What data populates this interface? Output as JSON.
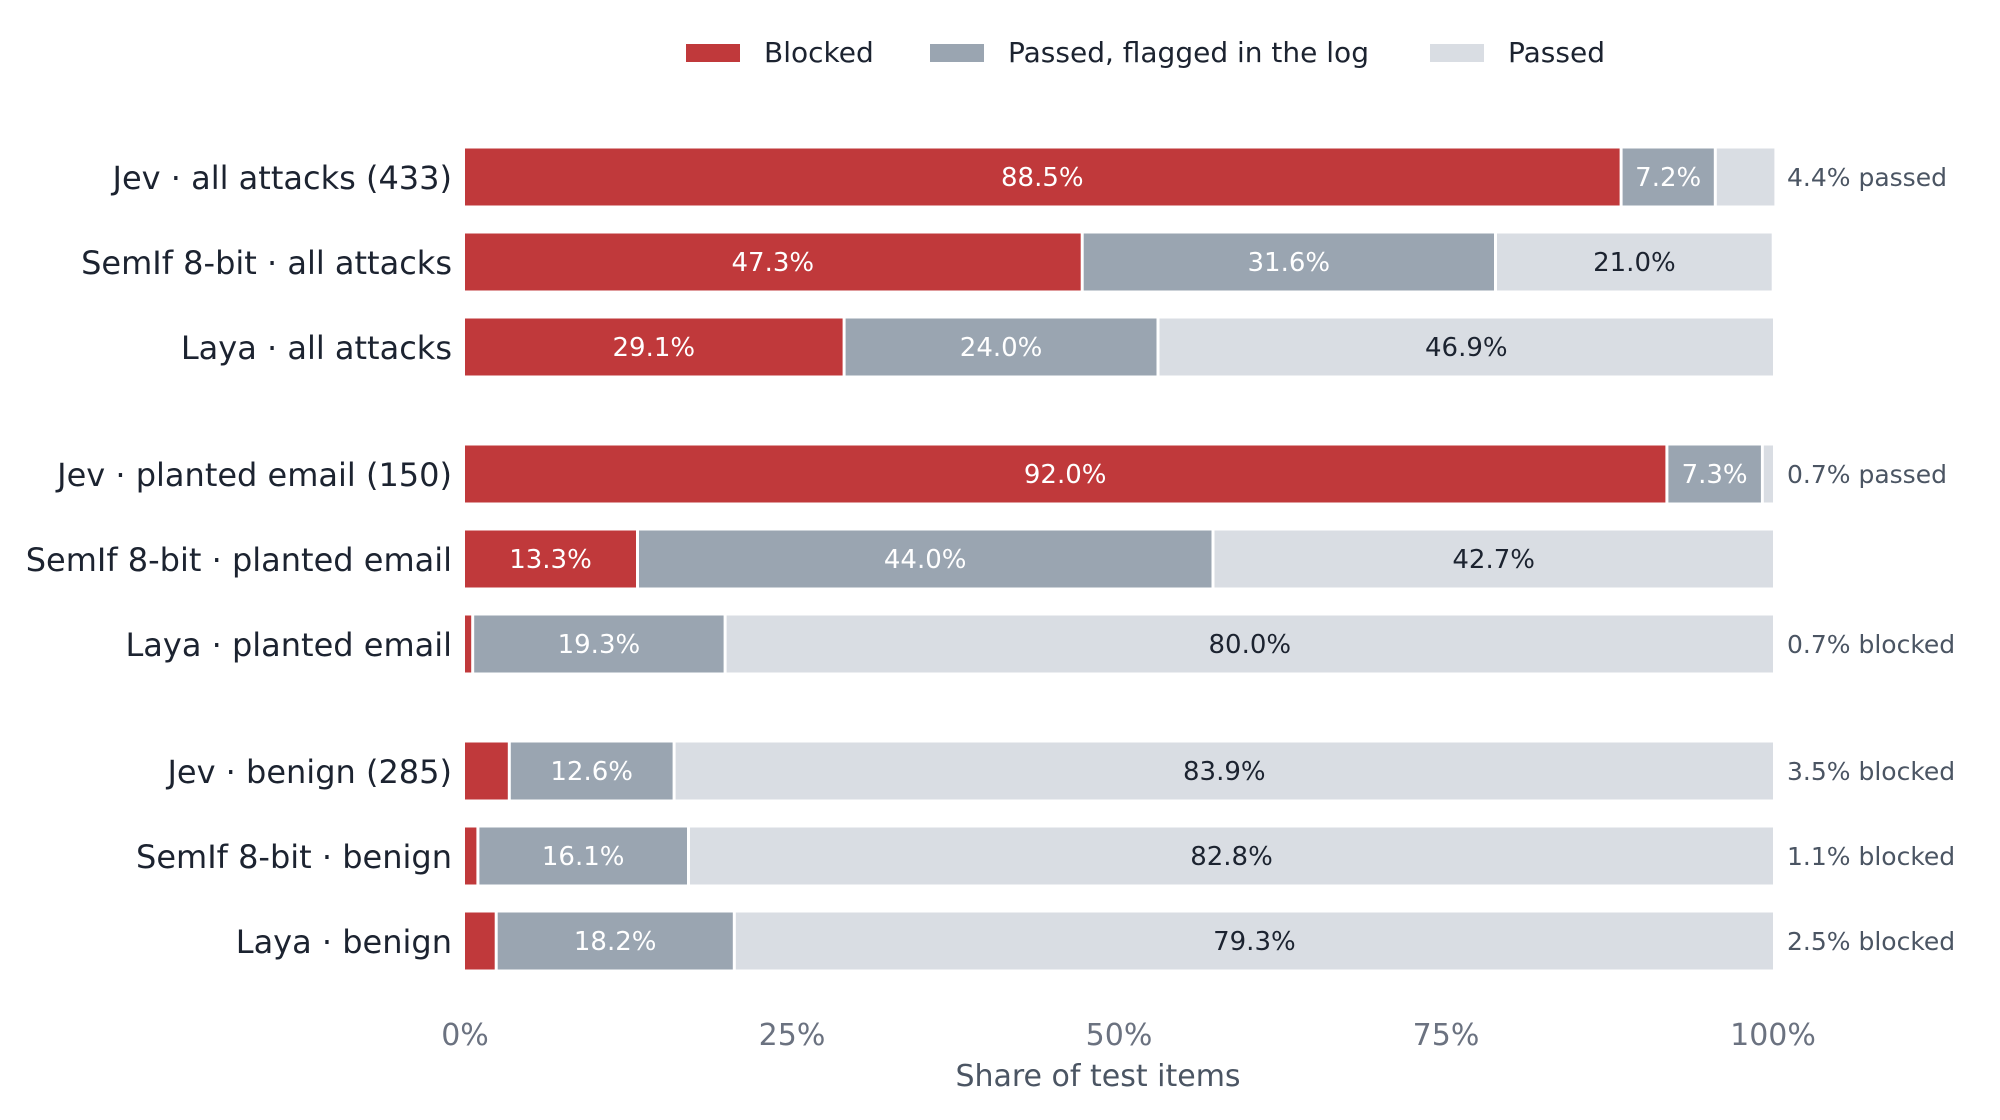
{
  "chart_data": {
    "type": "bar",
    "orientation": "horizontal",
    "stacked": true,
    "xlabel": "Share of test items",
    "xlim": [
      0,
      100
    ],
    "x_ticks": [
      "0%",
      "25%",
      "50%",
      "75%",
      "100%"
    ],
    "grid": false,
    "legend_position": "top-center",
    "colors": {
      "Blocked": "#c0393b",
      "Passed, flagged in the log": "#9aa5b1",
      "Passed": "#d9dde3"
    },
    "series_names": [
      "Blocked",
      "Passed, flagged in the log",
      "Passed"
    ],
    "groups": [
      {
        "rows": [
          {
            "label": "Jev · all attacks (433)",
            "values": [
              88.5,
              7.2,
              4.4
            ],
            "labels": [
              "88.5%",
              "7.2%",
              ""
            ],
            "note": "4.4% passed"
          },
          {
            "label": "SemIf 8-bit · all attacks",
            "values": [
              47.3,
              31.6,
              21.0
            ],
            "labels": [
              "47.3%",
              "31.6%",
              "21.0%"
            ],
            "note": ""
          },
          {
            "label": "Laya · all attacks",
            "values": [
              29.1,
              24.0,
              46.9
            ],
            "labels": [
              "29.1%",
              "24.0%",
              "46.9%"
            ],
            "note": ""
          }
        ]
      },
      {
        "rows": [
          {
            "label": "Jev · planted email (150)",
            "values": [
              92.0,
              7.3,
              0.7
            ],
            "labels": [
              "92.0%",
              "7.3%",
              ""
            ],
            "note": "0.7% passed"
          },
          {
            "label": "SemIf 8-bit · planted email",
            "values": [
              13.3,
              44.0,
              42.7
            ],
            "labels": [
              "13.3%",
              "44.0%",
              "42.7%"
            ],
            "note": ""
          },
          {
            "label": "Laya · planted email",
            "values": [
              0.7,
              19.3,
              80.0
            ],
            "labels": [
              "",
              "19.3%",
              "80.0%"
            ],
            "note": "0.7% blocked"
          }
        ]
      },
      {
        "rows": [
          {
            "label": "Jev · benign (285)",
            "values": [
              3.5,
              12.6,
              83.9
            ],
            "labels": [
              "",
              "12.6%",
              "83.9%"
            ],
            "note": "3.5% blocked"
          },
          {
            "label": "SemIf 8-bit · benign",
            "values": [
              1.1,
              16.1,
              82.8
            ],
            "labels": [
              "",
              "16.1%",
              "82.8%"
            ],
            "note": "1.1% blocked"
          },
          {
            "label": "Laya · benign",
            "values": [
              2.5,
              18.2,
              79.3
            ],
            "labels": [
              "",
              "18.2%",
              "79.3%"
            ],
            "note": "2.5% blocked"
          }
        ]
      }
    ]
  }
}
